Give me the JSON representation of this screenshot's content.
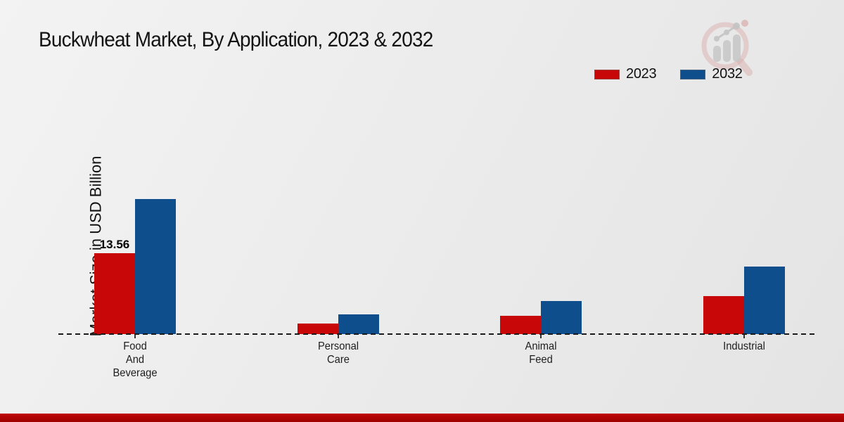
{
  "chart_data": {
    "type": "bar",
    "title": "Buckwheat Market, By Application, 2023 & 2032",
    "ylabel": "Market Size in USD Billion",
    "xlabel": "",
    "categories": [
      "Food And Beverage",
      "Personal Care",
      "Animal Feed",
      "Industrial"
    ],
    "category_label_lines": [
      [
        "Food",
        "And",
        "Beverage"
      ],
      [
        "Personal",
        "Care"
      ],
      [
        "Animal",
        "Feed"
      ],
      [
        "Industrial"
      ]
    ],
    "series": [
      {
        "name": "2023",
        "color": "#c80808",
        "values": [
          13.56,
          1.8,
          3.1,
          6.4
        ],
        "value_labels": [
          "13.56",
          "",
          "",
          ""
        ]
      },
      {
        "name": "2032",
        "color": "#0f4e8c",
        "values": [
          22.6,
          3.3,
          5.5,
          11.3
        ],
        "value_labels": [
          "",
          "",
          "",
          ""
        ]
      }
    ],
    "ylim": [
      0,
      26
    ],
    "grid": false,
    "legend_position": "top-right",
    "baseline_style": "dashed",
    "annotations": [
      "13.56"
    ]
  },
  "watermark_icon": "market-research-magnifier-logo",
  "colors": {
    "bar_2023": "#c80808",
    "bar_2032": "#0f4e8c",
    "background": "#ececec",
    "footer_band": "#b30404",
    "axis_dash": "#1a1a1a",
    "text": "#131313"
  }
}
